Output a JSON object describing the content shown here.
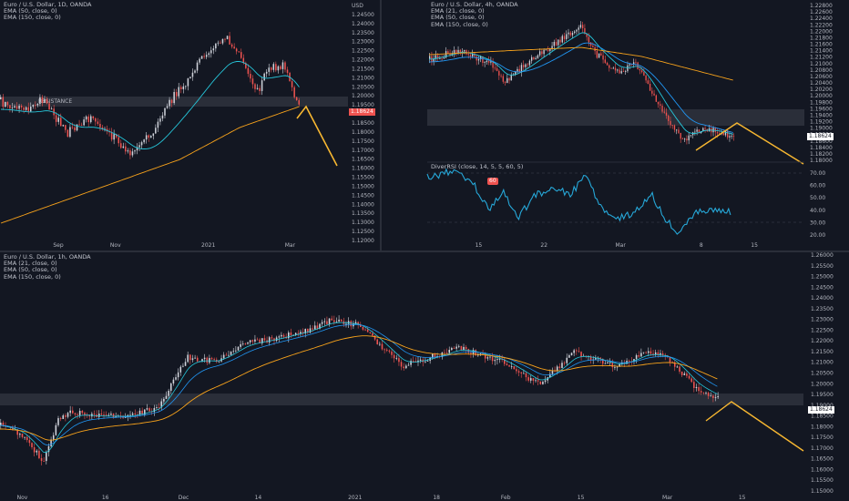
{
  "colors": {
    "background": "#131722",
    "candle_up": "#d1d4dc",
    "candle_down": "#ef5350",
    "ema_21": "#26c6da",
    "ema_50": "#2196f3",
    "ema_150": "#f7a21b",
    "projection": "#f7b731",
    "zone": "#2a2e39",
    "rsi_line": "#26a8d9"
  },
  "panel_daily": {
    "legend": [
      "Euro / U.S. Dollar, 1D, OANDA",
      "EMA (50, close, 0)",
      "EMA (150, close, 0)"
    ],
    "zone_label": "RESISTANCE",
    "price_tag": "1.18624",
    "price_tag_sub": "",
    "x_ticks": [
      "Sep",
      "Nov",
      "2021",
      "Mar"
    ],
    "y_ticks": [
      "USD",
      "1.24500",
      "1.24000",
      "1.23500",
      "1.23000",
      "1.22500",
      "1.22000",
      "1.21500",
      "1.21000",
      "1.20500",
      "1.20000",
      "1.19500",
      "1.19000",
      "1.18500",
      "1.18000",
      "1.17500",
      "1.17000",
      "1.16500",
      "1.16000",
      "1.15500",
      "1.15000",
      "1.14500",
      "1.14000",
      "1.13500",
      "1.13000",
      "1.12500",
      "1.12000"
    ]
  },
  "panel_4h": {
    "legend": [
      "Euro / U.S. Dollar, 4h, OANDA",
      "EMA (21, close, 0)",
      "EMA (50, close, 0)",
      "EMA (150, close, 0)"
    ],
    "price_tag": "1.18624",
    "y_ticks": [
      "1.22800",
      "1.22600",
      "1.22400",
      "1.22200",
      "1.22000",
      "1.21800",
      "1.21600",
      "1.21400",
      "1.21200",
      "1.21000",
      "1.20800",
      "1.20600",
      "1.20400",
      "1.20200",
      "1.20000",
      "1.19800",
      "1.19600",
      "1.19400",
      "1.19200",
      "1.19000",
      "1.18800",
      "1.18600",
      "1.18400",
      "1.18200",
      "1.18000"
    ],
    "rsi_legend": "DiverRSI (close, 14, 5, 5, 60, 5)",
    "rsi_badge": "60",
    "rsi_ticks": [
      "70.00",
      "60.00",
      "50.00",
      "40.00",
      "30.00",
      "20.00"
    ],
    "x_ticks": [
      "15",
      "22",
      "Mar",
      "8",
      "15"
    ]
  },
  "panel_1h": {
    "legend": [
      "Euro / U.S. Dollar, 1h, OANDA",
      "EMA (21, close, 0)",
      "EMA (50, close, 0)",
      "EMA (150, close, 0)"
    ],
    "price_tag": "1.18624",
    "y_ticks": [
      "1.26000",
      "1.25500",
      "1.25000",
      "1.24500",
      "1.24000",
      "1.23500",
      "1.23000",
      "1.22500",
      "1.22000",
      "1.21500",
      "1.21000",
      "1.20500",
      "1.20000",
      "1.19500",
      "1.19000",
      "1.18500",
      "1.18000",
      "1.17500",
      "1.17000",
      "1.16500",
      "1.16000",
      "1.15500",
      "1.15000"
    ],
    "x_ticks": [
      "Nov",
      "16",
      "Dec",
      "14",
      "2021",
      "18",
      "Feb",
      "15",
      "Mar",
      "15"
    ]
  }
}
